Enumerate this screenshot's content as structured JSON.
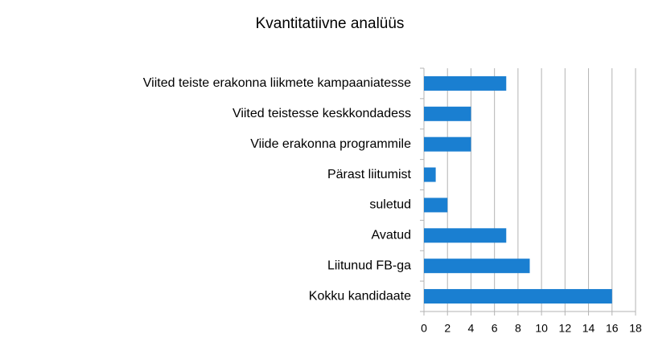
{
  "chart_data": {
    "type": "bar",
    "orientation": "horizontal",
    "title": "Kvantitatiivne analüüs",
    "categories": [
      "Viited teiste erakonna liikmete kampaaniatesse",
      "Viited teistesse keskkondadess",
      "Viide erakonna programmile",
      "Pärast liitumist",
      "suletud",
      "Avatud",
      "Liitunud FB-ga",
      "Kokku kandidaate"
    ],
    "values": [
      7,
      4,
      4,
      1,
      2,
      7,
      9,
      16
    ],
    "color": "#1a7fd1",
    "xlim": [
      0,
      18
    ],
    "xticks": [
      0,
      2,
      4,
      6,
      8,
      10,
      12,
      14,
      16,
      18
    ],
    "grid": true
  }
}
